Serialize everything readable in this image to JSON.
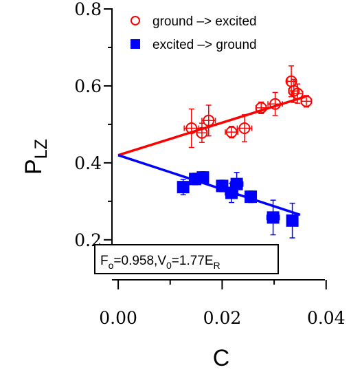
{
  "chart_data": {
    "type": "scatter",
    "title": "",
    "xlabel": "C",
    "ylabel": {
      "base": "P",
      "sub": "LZ"
    },
    "xlim": [
      -0.0012,
      0.0395
    ],
    "ylim": [
      0.18,
      0.8
    ],
    "xticks": [
      {
        "value": 0.0,
        "label": "0.00"
      },
      {
        "value": 0.02,
        "label": "0.02"
      },
      {
        "value": 0.04,
        "label": "0.04"
      }
    ],
    "yticks": [
      {
        "value": 0.2,
        "label": "0.2"
      },
      {
        "value": 0.4,
        "label": "0.4"
      },
      {
        "value": 0.6,
        "label": "0.6"
      },
      {
        "value": 0.8,
        "label": "0.8"
      }
    ],
    "legend_position": "top",
    "series": [
      {
        "name": "ground –> excited",
        "marker": "open-circle",
        "color": "#ff0000",
        "x": [
          0.0141,
          0.0161,
          0.0174,
          0.0218,
          0.0243,
          0.0275,
          0.0302,
          0.0333,
          0.0338,
          0.0345,
          0.0362
        ],
        "y": [
          0.49,
          0.478,
          0.51,
          0.48,
          0.49,
          0.543,
          0.553,
          0.612,
          0.587,
          0.58,
          0.56
        ],
        "xerr": [
          0.0014,
          0.001,
          0.0013,
          0.0012,
          0.0014,
          0.001,
          0.0014,
          0.0008,
          0.001,
          0.001,
          0.001
        ],
        "yerr": [
          0.05,
          0.025,
          0.04,
          0.015,
          0.035,
          0.015,
          0.03,
          0.04,
          0.03,
          0.025,
          0.015
        ],
        "fit": {
          "x": [
            0.0,
            0.036
          ],
          "y": [
            0.42,
            0.572
          ]
        }
      },
      {
        "name": "excited –> ground",
        "marker": "filled-square",
        "color": "#0000ff",
        "x": [
          0.0125,
          0.0148,
          0.0163,
          0.02,
          0.0218,
          0.0228,
          0.0255,
          0.0298,
          0.0335
        ],
        "y": [
          0.337,
          0.358,
          0.362,
          0.34,
          0.322,
          0.345,
          0.312,
          0.258,
          0.25
        ],
        "xerr": [
          0.001,
          0.001,
          0.001,
          0.001,
          0.0012,
          0.0012,
          0.001,
          0.0012,
          0.001
        ],
        "yerr": [
          0.02,
          0.015,
          0.015,
          0.015,
          0.025,
          0.03,
          0.015,
          0.045,
          0.045
        ],
        "fit": {
          "x": [
            0.0,
            0.035
          ],
          "y": [
            0.42,
            0.265
          ]
        }
      }
    ],
    "annotation": {
      "F_base": "F",
      "F_sub": "o",
      "F_val": "=0.958,V",
      "V_sub": "0",
      "V_val": "=1.77E",
      "E_sub": "R"
    }
  }
}
